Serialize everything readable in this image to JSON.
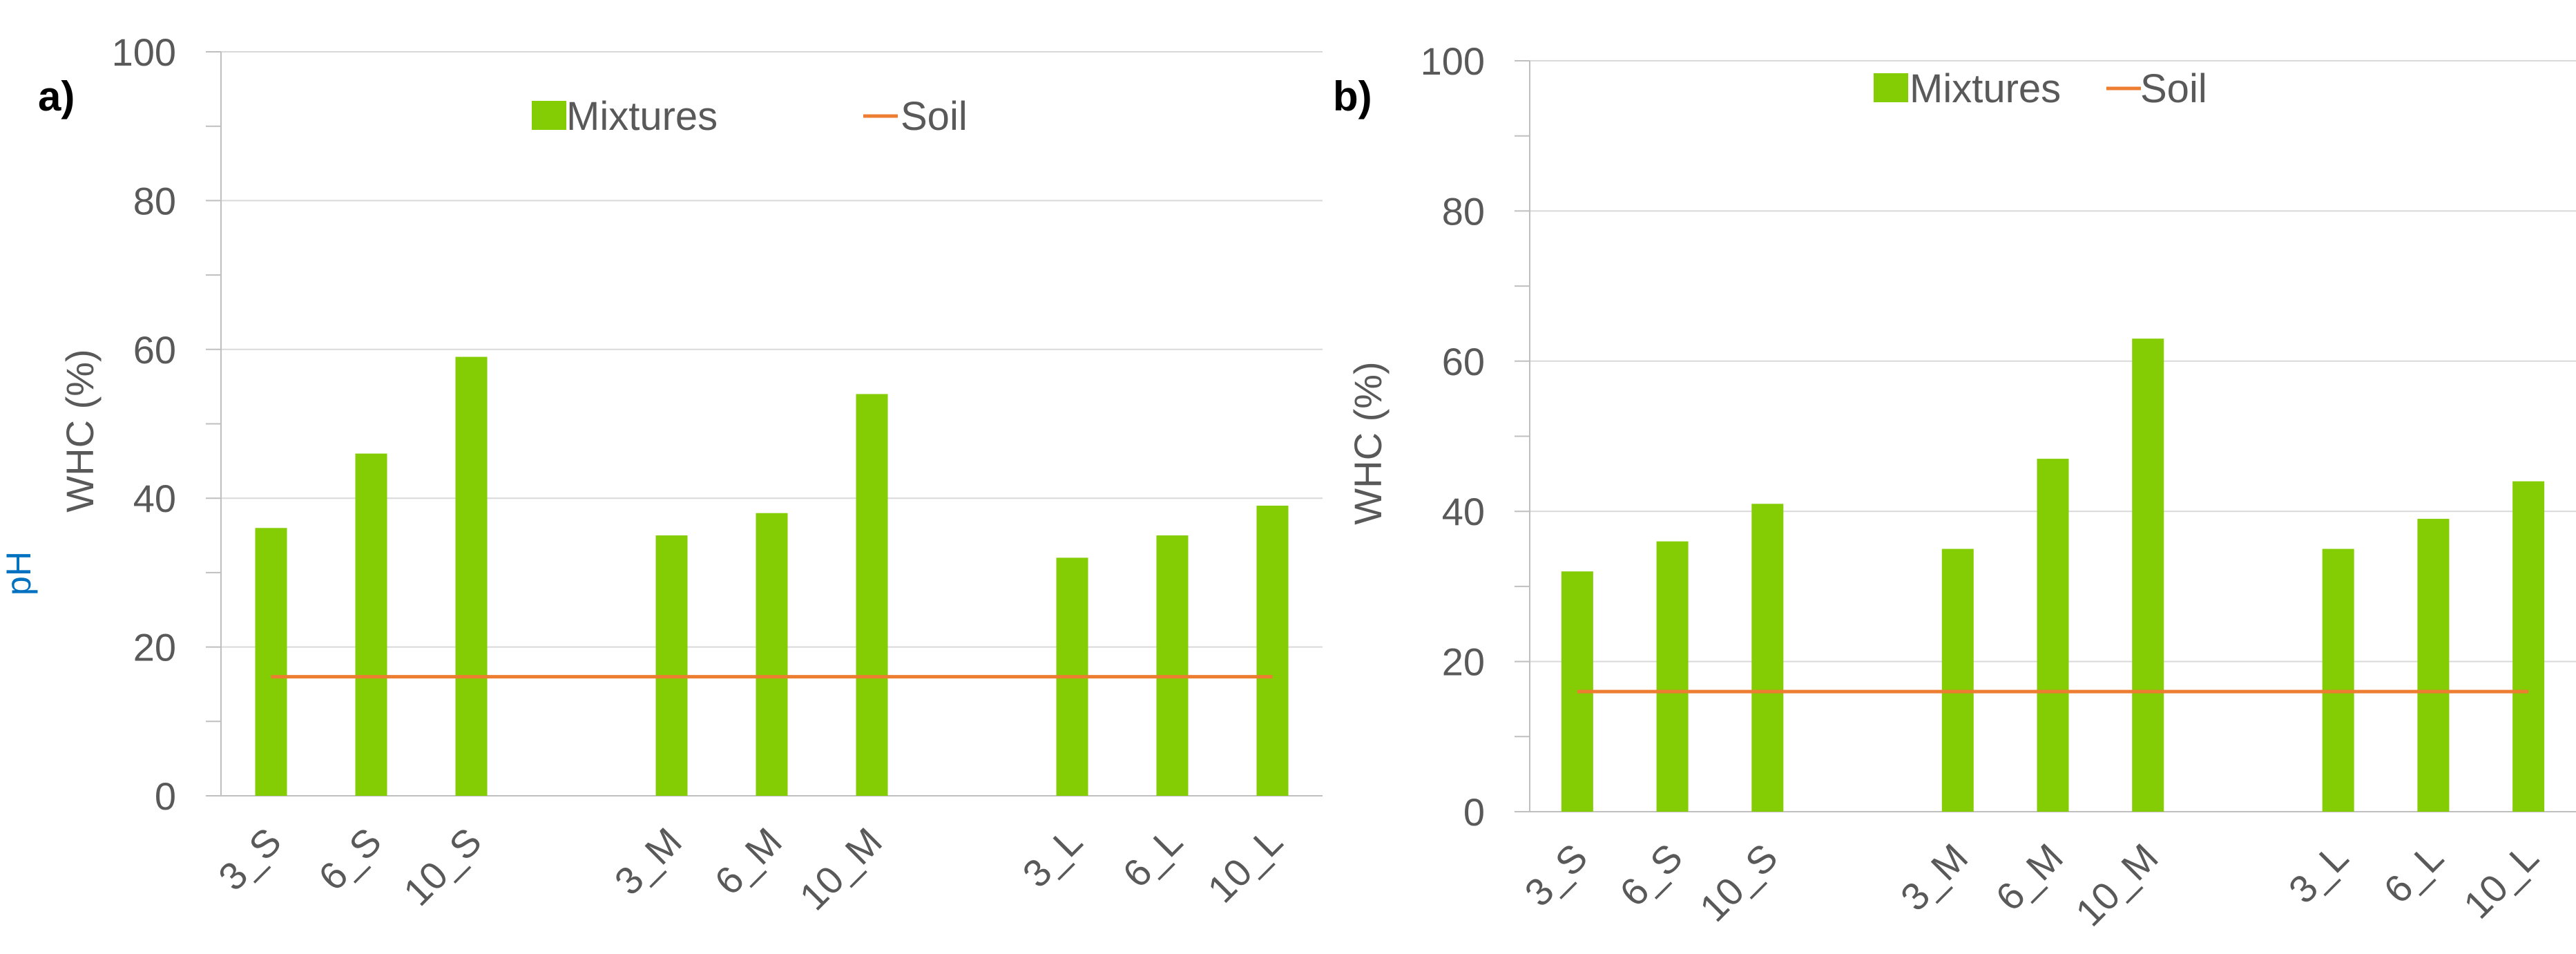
{
  "colors": {
    "mixtures": "#84cc04",
    "soil": "#ed7d31",
    "tick_text": "#595959",
    "grid": "#d9d9d9",
    "axis": "#bfbfbf",
    "stray_label": "#0070c0"
  },
  "left_edge_fragment": {
    "text": "pH"
  },
  "chart_data": [
    {
      "type": "bar",
      "panel_label": "a)",
      "ylabel": "WHC (%)",
      "ylim": [
        0,
        100
      ],
      "yticks": [
        0,
        20,
        40,
        60,
        80,
        100
      ],
      "grid": true,
      "legend_position": "top-center",
      "legend": [
        {
          "name": "Mixtures",
          "kind": "bar"
        },
        {
          "name": "Soil",
          "kind": "line"
        }
      ],
      "categories": [
        "3_S",
        "6_S",
        "10_S",
        "",
        "3_M",
        "6_M",
        "10_M",
        "",
        "3_L",
        "6_L",
        "10_L"
      ],
      "series": [
        {
          "name": "Mixtures",
          "type": "bar",
          "values": [
            36,
            46,
            59,
            null,
            35,
            38,
            54,
            null,
            32,
            35,
            39
          ]
        },
        {
          "name": "Soil",
          "type": "line",
          "values": [
            16,
            16,
            16,
            16,
            16,
            16,
            16,
            16,
            16,
            16,
            16
          ]
        }
      ]
    },
    {
      "type": "bar",
      "panel_label": "b)",
      "ylabel": "WHC (%)",
      "ylim": [
        0,
        100
      ],
      "yticks": [
        0,
        20,
        40,
        60,
        80,
        100
      ],
      "grid": true,
      "legend_position": "top-center",
      "legend": [
        {
          "name": "Mixtures",
          "kind": "bar"
        },
        {
          "name": "Soil",
          "kind": "line"
        }
      ],
      "categories": [
        "3_S",
        "6_S",
        "10_S",
        "",
        "3_M",
        "6_M",
        "10_M",
        "",
        "3_L",
        "6_L",
        "10_L"
      ],
      "series": [
        {
          "name": "Mixtures",
          "type": "bar",
          "values": [
            32,
            36,
            41,
            null,
            35,
            47,
            63,
            null,
            35,
            39,
            44
          ]
        },
        {
          "name": "Soil",
          "type": "line",
          "values": [
            16,
            16,
            16,
            16,
            16,
            16,
            16,
            16,
            16,
            16,
            16
          ]
        }
      ]
    }
  ]
}
